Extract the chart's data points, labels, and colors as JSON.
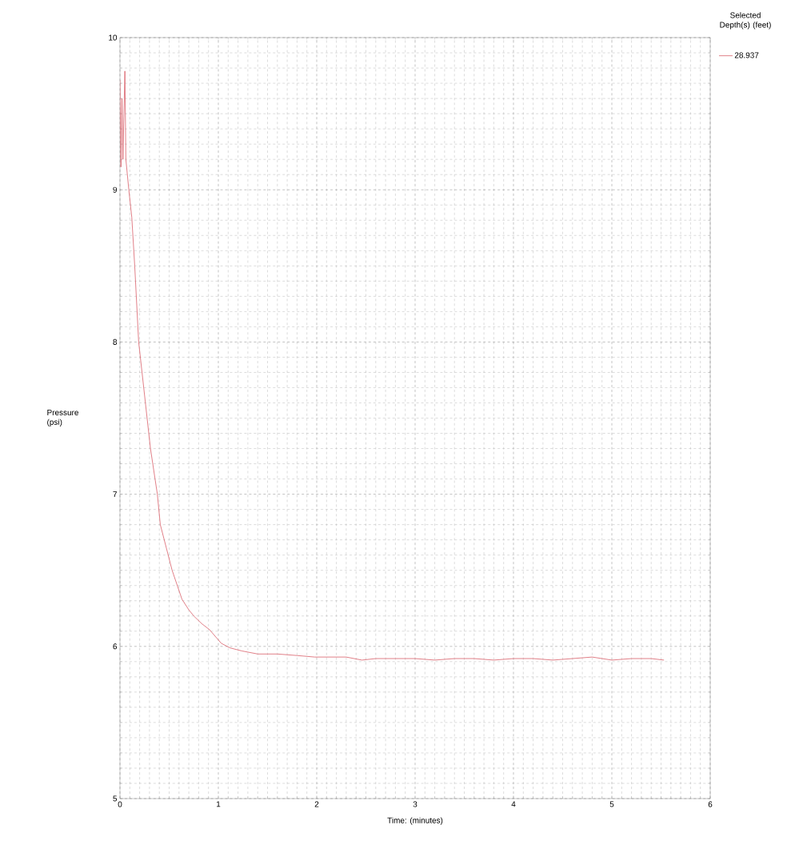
{
  "chart_data": {
    "type": "line",
    "xlabel": "Time: (minutes)",
    "ylabel": "Pressure (psi)",
    "legend_title": "Selected Depth(s) (feet)",
    "xlim": [
      0,
      6
    ],
    "ylim": [
      5,
      10
    ],
    "xticks": [
      0,
      1,
      2,
      3,
      4,
      5,
      6
    ],
    "yticks": [
      5,
      6,
      7,
      8,
      9,
      10
    ],
    "grid": true,
    "legend": "top right",
    "marker": "none",
    "line_style": "solid",
    "series": [
      {
        "name": "28.937",
        "color": "#d9606a",
        "x": [
          0.0,
          0.01,
          0.02,
          0.03,
          0.04,
          0.05,
          0.06,
          0.09,
          0.12,
          0.15,
          0.19,
          0.25,
          0.31,
          0.38,
          0.41,
          0.47,
          0.53,
          0.63,
          0.7,
          0.75,
          0.83,
          0.91,
          1.03,
          1.12,
          1.24,
          1.4,
          1.6,
          1.8,
          1.98,
          2.3,
          2.46,
          2.6,
          2.8,
          3.0,
          3.2,
          3.4,
          3.6,
          3.8,
          4.0,
          4.2,
          4.4,
          4.6,
          4.8,
          5.0,
          5.2,
          5.4,
          5.53
        ],
        "values": [
          9.72,
          9.15,
          9.6,
          9.2,
          9.5,
          9.78,
          9.2,
          9.0,
          8.82,
          8.5,
          8.0,
          7.65,
          7.3,
          7.0,
          6.8,
          6.65,
          6.5,
          6.31,
          6.24,
          6.2,
          6.15,
          6.11,
          6.02,
          5.99,
          5.97,
          5.95,
          5.95,
          5.94,
          5.93,
          5.93,
          5.91,
          5.92,
          5.92,
          5.92,
          5.91,
          5.92,
          5.92,
          5.91,
          5.92,
          5.92,
          5.91,
          5.92,
          5.93,
          5.91,
          5.92,
          5.92,
          5.91
        ]
      }
    ]
  }
}
